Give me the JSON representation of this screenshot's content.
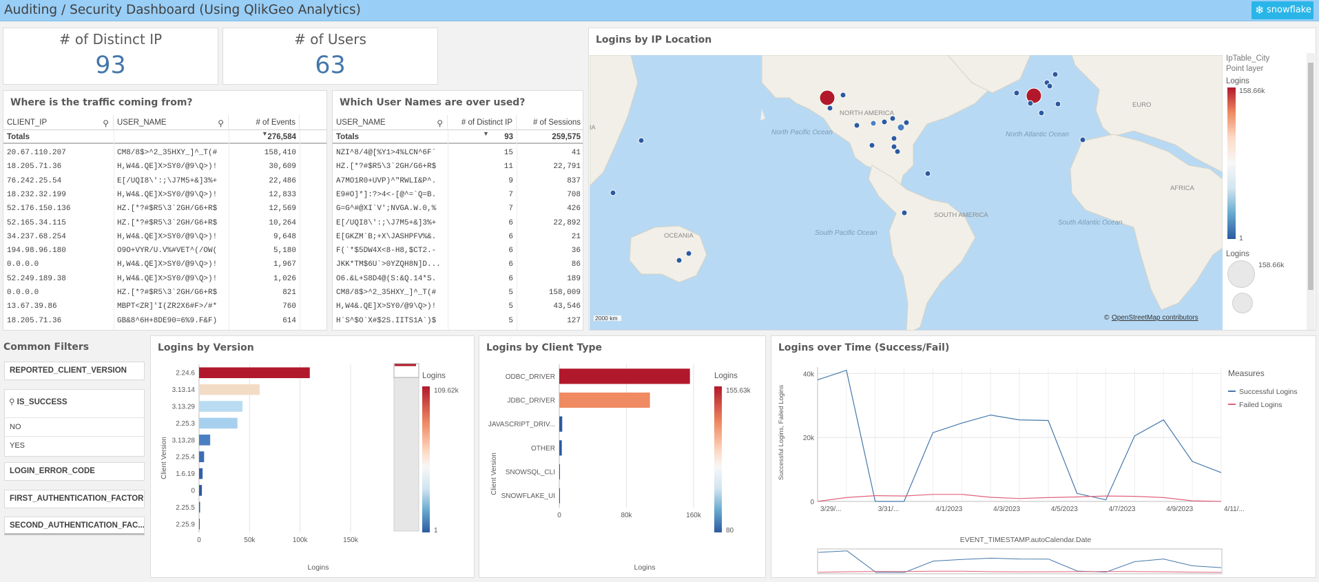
{
  "header": {
    "title": "Auditing / Security Dashboard (Using QlikGeo Analytics)",
    "brand": "snowflake"
  },
  "kpis": {
    "distinct_ip": {
      "label": "# of Distinct IP",
      "value": "93"
    },
    "users": {
      "label": "# of Users",
      "value": "63"
    }
  },
  "traffic_table": {
    "title": "Where is the traffic coming from?",
    "columns": [
      "CLIENT_IP",
      "USER_NAME",
      "# of Events"
    ],
    "totals_label": "Totals",
    "totals_value": "276,584",
    "rows": [
      [
        "20.67.110.207",
        "CM8/8$>^2_35HXY_]^_T(#",
        "158,410"
      ],
      [
        "18.205.71.36",
        "H,W4&.QE]X>SY0/@9\\Q>)!",
        "30,609"
      ],
      [
        "76.242.25.54",
        "E[/UQI8\\':;\\J7M5+&]3%+",
        "22,486"
      ],
      [
        "18.232.32.199",
        "H,W4&.QE]X>SY0/@9\\Q>)!",
        "12,833"
      ],
      [
        "52.176.150.136",
        "HZ.[*?#$R5\\3`2GH/G6+R$",
        "12,569"
      ],
      [
        "52.165.34.115",
        "HZ.[*?#$R5\\3`2GH/G6+R$",
        "10,264"
      ],
      [
        "34.237.68.254",
        "H,W4&.QE]X>SY0/@9\\Q>)!",
        "9,648"
      ],
      [
        "194.98.96.180",
        "O9O+VYR/U.V%#VET^(/OW(",
        "5,180"
      ],
      [
        "0.0.0.0",
        "H,W4&.QE]X>SY0/@9\\Q>)!",
        "1,967"
      ],
      [
        "52.249.189.38",
        "H,W4&.QE]X>SY0/@9\\Q>)!",
        "1,026"
      ],
      [
        "0.0.0.0",
        "HZ.[*?#$R5\\3`2GH/G6+R$",
        "821"
      ],
      [
        "13.67.39.86",
        "MBPT<ZR]'I(ZR2X6#F>/#*",
        "760"
      ],
      [
        "18.205.71.36",
        "GB&8^6H+8DE90=6%9.F&F)",
        "614"
      ]
    ]
  },
  "users_table": {
    "title": "Which User Names are over used?",
    "columns": [
      "USER_NAME",
      "# of Distinct IP",
      "# of Sessions"
    ],
    "totals_label": "Totals",
    "totals_ip": "93",
    "totals_sessions": "259,575",
    "rows": [
      [
        "NZI^8/4@[%Y1>4%LCN^6F`",
        "15",
        "41"
      ],
      [
        "HZ.[*?#$R5\\3`2GH/G6+R$",
        "11",
        "22,791"
      ],
      [
        "A7MO1R0+UVP)^\"RWLI&P^.",
        "9",
        "837"
      ],
      [
        "E9#O]*]:?>4<-[@^=`Q=B.",
        "7",
        "708"
      ],
      [
        "G=G^#@XI`V';NVGA.W.0,%",
        "7",
        "426"
      ],
      [
        "E[/UQI8\\':;\\J7M5+&]3%+",
        "6",
        "22,892"
      ],
      [
        "E[GKZM`B;+X\\JASHPFV%&.",
        "6",
        "21"
      ],
      [
        "F(`*$5DW4X<8-H8,$CT2.-",
        "6",
        "36"
      ],
      [
        "JKK*TM$6U`>0YZQH8N]D...",
        "6",
        "86"
      ],
      [
        "O6.&L+S8D4@(S:&Q.14*S.",
        "6",
        "189"
      ],
      [
        "CM8/8$>^2_35HXY_]^_T(#",
        "5",
        "158,009"
      ],
      [
        "H,W4&.QE]X>SY0/@9\\Q>)!",
        "5",
        "43,546"
      ],
      [
        "H`S^$O`X#$2S.IITS1A`)$",
        "5",
        "127"
      ]
    ]
  },
  "map": {
    "title": "Logins by IP Location",
    "legend_layer": "IpTable_City",
    "legend_sublayer": "Point layer",
    "legend_measure": "Logins",
    "legend_max": "158.66k",
    "legend_min": "1",
    "size_legend_title": "Logins",
    "size_legend_max": "158.66k",
    "scale": "2000 km",
    "attribution_prefix": "©",
    "attribution_link": "OpenStreetMap contributors",
    "labels": {
      "north_america": "NORTH AMERICA",
      "south_america": "SOUTH AMERICA",
      "oceania": "OCEANIA",
      "africa": "AFRICA",
      "europe": "EURO",
      "asia_fragment": "IA",
      "npac": "North Pacific Ocean",
      "natl": "North Atlantic Ocean",
      "spac": "South Pacific Ocean",
      "satl": "South Atlantic Ocean"
    },
    "colors": {
      "high": "#b2182b",
      "mid": "#4a7fc1",
      "low": "#2c5aa0",
      "water": "#b8d9f3",
      "land": "#f1efe7"
    }
  },
  "filters": {
    "title": "Common Filters",
    "items": [
      "REPORTED_CLIENT_VERSION",
      "IS_SUCCESS",
      "LOGIN_ERROR_CODE",
      "FIRST_AUTHENTICATION_FACTOR",
      "SECOND_AUTHENTICATION_FAC..."
    ],
    "is_success_options": [
      "NO",
      "YES"
    ]
  },
  "version_chart": {
    "title": "Logins by Version",
    "legend_title": "Logins",
    "legend_max": "109.62k",
    "legend_min": "1",
    "chart_data": {
      "type": "bar",
      "orientation": "horizontal",
      "categories": [
        "2.24.6",
        "3.13.14",
        "3.13.29",
        "2.25.3",
        "3.13.28",
        "2.25.4",
        "1.6.19",
        "0",
        "2.25.5",
        "2.25.9"
      ],
      "values": [
        109620,
        60000,
        43000,
        38000,
        11000,
        5000,
        3500,
        2800,
        1000,
        400
      ],
      "colors": [
        "#b2182b",
        "#f3dcc6",
        "#b9dcf2",
        "#a6d0ee",
        "#4a7fc1",
        "#3b6db5",
        "#2f62ad",
        "#2c5aa0",
        "#2c5aa0",
        "#2c5aa0"
      ],
      "xlabel": "Logins",
      "ylabel": "Client Version",
      "xlim": [
        0,
        150000
      ],
      "xticks": [
        "0",
        "50k",
        "100k",
        "150k"
      ],
      "grid": true
    }
  },
  "client_chart": {
    "title": "Logins by Client Type",
    "legend_title": "Logins",
    "legend_max": "155.63k",
    "legend_min": "80",
    "chart_data": {
      "type": "bar",
      "orientation": "horizontal",
      "categories": [
        "ODBC_DRIVER",
        "JDBC_DRIVER",
        "JAVASCRIPT_DRIV...",
        "OTHER",
        "SNOWSQL_CLI",
        "SNOWFLAKE_UI"
      ],
      "values": [
        155630,
        108000,
        3500,
        3000,
        400,
        80
      ],
      "colors": [
        "#b2182b",
        "#ef8a62",
        "#2c5aa0",
        "#2c5aa0",
        "#2c5aa0",
        "#2c5aa0"
      ],
      "xlabel": "Logins",
      "ylabel": "Client Version",
      "xlim": [
        0,
        160000
      ],
      "xticks": [
        "0",
        "80k",
        "160k"
      ],
      "grid": true
    }
  },
  "time_chart": {
    "title": "Logins over Time (Success/Fail)",
    "legend_title": "Measures",
    "chart_data": {
      "type": "line",
      "x": [
        "3/29/2023",
        "3/30/2023",
        "3/31/2023",
        "4/1/2023",
        "4/2/2023",
        "4/3/2023",
        "4/4/2023",
        "4/5/2023",
        "4/6/2023",
        "4/7/2023",
        "4/8/2023",
        "4/9/2023",
        "4/10/2023",
        "4/11/2023",
        "4/12/2023"
      ],
      "xtick_labels": [
        "3/29/...",
        "3/31/...",
        "4/1/2023",
        "4/3/2023",
        "4/5/2023",
        "4/7/2023",
        "4/9/2023",
        "4/11/..."
      ],
      "series": [
        {
          "name": "Successful Logins",
          "color": "#4477aa",
          "values": [
            38000,
            41000,
            0,
            0,
            21500,
            24500,
            27000,
            25500,
            25300,
            2500,
            500,
            20500,
            25500,
            12500,
            9000
          ]
        },
        {
          "name": "Failed Logins",
          "color": "#e0617a",
          "values": [
            0,
            1200,
            1800,
            1700,
            2200,
            2200,
            1300,
            900,
            1200,
            1400,
            1700,
            1600,
            1200,
            200,
            0
          ]
        }
      ],
      "xlabel": "EVENT_TIMESTAMP.autoCalendar.Date",
      "ylabel": "Successful Logins, Failed Logins",
      "ylim": [
        0,
        42000
      ],
      "yticks": [
        "0",
        "20k",
        "40k"
      ],
      "grid": true,
      "legend": "right"
    }
  }
}
